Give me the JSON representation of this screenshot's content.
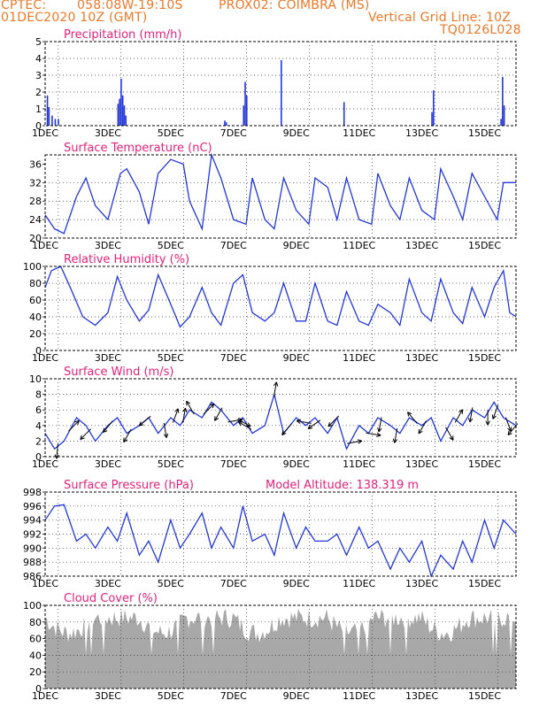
{
  "header": {
    "source": "CPTEC:",
    "location": "058:08W-19:10S",
    "station": "PROX02: COIMBRA (MS)",
    "run": "01DEC2020 10Z (GMT)",
    "grid_note": "Vertical Grid Line: 10Z",
    "code": "TQ0126L028"
  },
  "x_ticks": [
    "1DEC",
    "3DEC",
    "5DEC",
    "7DEC",
    "9DEC",
    "11DEC",
    "13DEC",
    "15DEC"
  ],
  "colors": {
    "header": "#e8792b",
    "title": "#e0227a",
    "line": "#2336d8",
    "cloud": "#a8a8a8",
    "wind_arrow": "#000000"
  },
  "chart_data": [
    {
      "id": "precip",
      "type": "bar",
      "title": "Precipitation (mm/h)",
      "ylim": [
        0,
        5
      ],
      "yticks": [
        0,
        1,
        2,
        3,
        4,
        5
      ],
      "days": 15,
      "bars": [
        [
          0.05,
          1.8
        ],
        [
          0.1,
          1.1
        ],
        [
          0.2,
          0.6
        ],
        [
          0.3,
          0.4
        ],
        [
          0.4,
          0.4
        ],
        [
          2.3,
          1.3
        ],
        [
          2.35,
          1.6
        ],
        [
          2.4,
          2.8
        ],
        [
          2.45,
          1.8
        ],
        [
          2.5,
          1.2
        ],
        [
          2.55,
          0.6
        ],
        [
          5.7,
          0.3
        ],
        [
          5.75,
          0.2
        ],
        [
          6.3,
          1.2
        ],
        [
          6.35,
          2.6
        ],
        [
          6.4,
          1.8
        ],
        [
          7.5,
          3.9
        ],
        [
          9.5,
          1.4
        ],
        [
          12.3,
          0.8
        ],
        [
          12.35,
          2.1
        ],
        [
          14.5,
          0.4
        ],
        [
          14.55,
          2.9
        ],
        [
          14.6,
          1.2
        ]
      ]
    },
    {
      "id": "temp",
      "type": "line",
      "title": "Surface Temperature (nC)",
      "ylim": [
        20,
        38
      ],
      "yticks": [
        20,
        24,
        28,
        32,
        36
      ],
      "x": [
        0,
        0.3,
        0.6,
        1.0,
        1.3,
        1.6,
        2.0,
        2.4,
        2.6,
        3.0,
        3.3,
        3.6,
        4.0,
        4.4,
        4.6,
        5.0,
        5.3,
        5.6,
        6.0,
        6.4,
        6.6,
        7.0,
        7.3,
        7.6,
        8.0,
        8.4,
        8.6,
        9.0,
        9.3,
        9.6,
        10.0,
        10.4,
        10.6,
        11.0,
        11.3,
        11.6,
        12.0,
        12.4,
        12.6,
        13.0,
        13.3,
        13.6,
        14.0,
        14.4,
        14.6,
        15.0
      ],
      "y": [
        25,
        22,
        21,
        29,
        33,
        27,
        24,
        34,
        35,
        30,
        23,
        34,
        37,
        36,
        28,
        22,
        38,
        33,
        24,
        23,
        33,
        24,
        22,
        33,
        26,
        23,
        33,
        31,
        24,
        33,
        24,
        23,
        34,
        27,
        24,
        33,
        26,
        24,
        35,
        29,
        24,
        34,
        29,
        24,
        32,
        32
      ]
    },
    {
      "id": "rh",
      "type": "line",
      "title": "Relative Humidity (%)",
      "ylim": [
        0,
        100
      ],
      "yticks": [
        0,
        20,
        40,
        60,
        80,
        100
      ],
      "x": [
        0,
        0.2,
        0.5,
        0.8,
        1.2,
        1.6,
        2.0,
        2.3,
        2.6,
        3.0,
        3.3,
        3.6,
        4.0,
        4.3,
        4.6,
        5.0,
        5.3,
        5.6,
        6.0,
        6.3,
        6.6,
        7.0,
        7.3,
        7.6,
        8.0,
        8.3,
        8.6,
        9.0,
        9.3,
        9.6,
        10.0,
        10.3,
        10.6,
        11.0,
        11.3,
        11.6,
        12.0,
        12.3,
        12.6,
        13.0,
        13.3,
        13.6,
        14.0,
        14.3,
        14.6,
        14.8,
        15.0
      ],
      "y": [
        75,
        95,
        100,
        75,
        40,
        30,
        45,
        88,
        60,
        35,
        48,
        90,
        55,
        28,
        40,
        75,
        45,
        30,
        80,
        90,
        45,
        35,
        45,
        80,
        35,
        35,
        80,
        35,
        30,
        70,
        35,
        30,
        55,
        45,
        30,
        85,
        45,
        35,
        85,
        45,
        32,
        75,
        40,
        75,
        95,
        45,
        40
      ]
    },
    {
      "id": "wind",
      "type": "line",
      "title": "Surface Wind (m/s)",
      "ylim": [
        0,
        10
      ],
      "yticks": [
        0,
        2,
        4,
        6,
        8,
        10
      ],
      "x": [
        0,
        0.3,
        0.6,
        1.0,
        1.3,
        1.6,
        2.0,
        2.3,
        2.6,
        3.0,
        3.3,
        3.6,
        4.0,
        4.3,
        4.6,
        5.0,
        5.3,
        5.6,
        6.0,
        6.3,
        6.6,
        7.0,
        7.3,
        7.6,
        8.0,
        8.3,
        8.6,
        9.0,
        9.3,
        9.6,
        10.0,
        10.3,
        10.6,
        11.0,
        11.3,
        11.6,
        12.0,
        12.3,
        12.6,
        13.0,
        13.3,
        13.6,
        14.0,
        14.3,
        14.6,
        15.0
      ],
      "y": [
        3,
        1,
        2,
        5,
        4,
        2,
        4,
        5,
        3,
        4,
        5,
        3,
        5,
        4,
        6,
        5,
        7,
        6,
        4,
        5,
        3,
        4,
        8,
        3,
        5,
        4,
        5,
        3,
        5,
        1,
        4,
        3,
        5,
        4,
        3,
        5,
        4,
        5,
        2,
        5,
        4,
        6,
        5,
        7,
        5,
        4
      ],
      "arrows": [
        [
          0.4,
          185
        ],
        [
          0.8,
          45
        ],
        [
          1.4,
          225
        ],
        [
          2.1,
          220
        ],
        [
          2.7,
          210
        ],
        [
          3.3,
          230
        ],
        [
          3.8,
          170
        ],
        [
          4.1,
          20
        ],
        [
          4.4,
          10
        ],
        [
          4.7,
          330
        ],
        [
          5.1,
          45
        ],
        [
          5.6,
          210
        ],
        [
          5.9,
          80
        ],
        [
          6.2,
          120
        ],
        [
          6.5,
          300
        ],
        [
          7.3,
          10
        ],
        [
          7.8,
          220
        ],
        [
          8.4,
          280
        ],
        [
          8.7,
          235
        ],
        [
          9.3,
          225
        ],
        [
          9.7,
          80
        ],
        [
          10.3,
          100
        ],
        [
          10.7,
          190
        ],
        [
          11.2,
          190
        ],
        [
          11.8,
          320
        ],
        [
          12.1,
          210
        ],
        [
          12.8,
          150
        ],
        [
          13.1,
          30
        ],
        [
          13.6,
          190
        ],
        [
          14.1,
          180
        ],
        [
          14.4,
          200
        ],
        [
          14.7,
          160
        ],
        [
          15.0,
          220
        ]
      ]
    },
    {
      "id": "pres",
      "type": "line",
      "title": "Surface Pressure (hPa)",
      "annotation": "Model Altitude: 138.319 m",
      "ylim": [
        986,
        998
      ],
      "yticks": [
        986,
        988,
        990,
        992,
        994,
        996,
        998
      ],
      "x": [
        0,
        0.3,
        0.6,
        1.0,
        1.3,
        1.6,
        2.0,
        2.3,
        2.6,
        3.0,
        3.3,
        3.6,
        4.0,
        4.3,
        4.6,
        5.0,
        5.3,
        5.6,
        6.0,
        6.3,
        6.6,
        7.0,
        7.3,
        7.6,
        8.0,
        8.3,
        8.6,
        9.0,
        9.3,
        9.6,
        10.0,
        10.3,
        10.6,
        11.0,
        11.3,
        11.6,
        12.0,
        12.3,
        12.6,
        13.0,
        13.3,
        13.6,
        14.0,
        14.3,
        14.6,
        15.0
      ],
      "y": [
        994,
        996,
        996.2,
        991,
        992,
        990,
        993,
        991,
        995,
        989,
        991,
        988,
        994,
        990,
        992,
        995,
        990,
        993,
        990,
        996,
        991,
        992,
        989,
        995,
        990,
        993,
        991,
        991,
        992,
        989,
        993,
        990,
        991,
        987,
        990,
        988,
        991,
        986,
        989,
        987,
        991,
        988,
        994,
        990,
        994,
        992
      ]
    },
    {
      "id": "cloud",
      "type": "area",
      "title": "Cloud Cover (%)",
      "ylim": [
        0,
        100
      ],
      "yticks": [
        0,
        20,
        40,
        60,
        80,
        100
      ]
    }
  ]
}
